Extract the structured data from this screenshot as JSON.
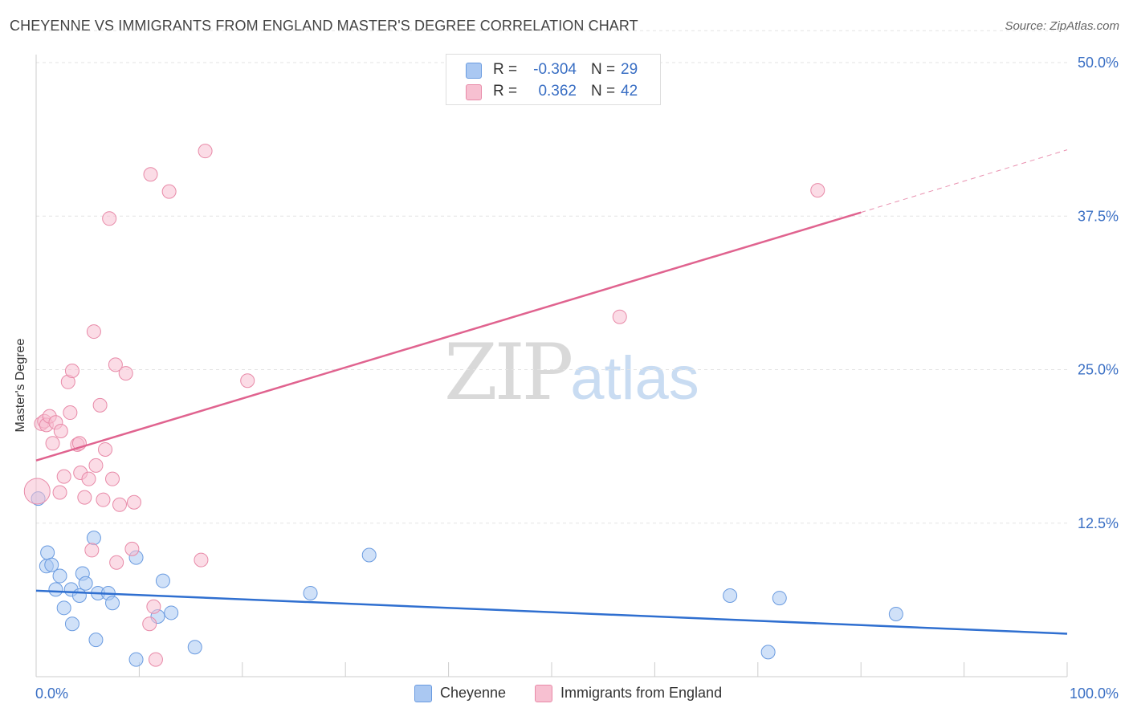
{
  "title": "CHEYENNE VS IMMIGRANTS FROM ENGLAND MASTER'S DEGREE CORRELATION CHART",
  "source": "Source: ZipAtlas.com",
  "watermark": {
    "zip": "ZIP",
    "atlas": "atlas"
  },
  "legend": {
    "rows": [
      {
        "r_label": "R =",
        "r_value": "-0.304",
        "n_label": "N =",
        "n_value": "29",
        "color": "#aac8f2",
        "border": "#6a9be0"
      },
      {
        "r_label": "R =",
        "r_value": "0.362",
        "n_label": "N =",
        "n_value": "42",
        "color": "#f7c0d1",
        "border": "#e88aa8"
      }
    ]
  },
  "bottom_legend": [
    {
      "label": "Cheyenne",
      "color": "#aac8f2",
      "border": "#6a9be0"
    },
    {
      "label": "Immigrants from England",
      "color": "#f7c0d1",
      "border": "#e88aa8"
    }
  ],
  "chart_data": {
    "type": "scatter",
    "title": "CHEYENNE VS IMMIGRANTS FROM ENGLAND MASTER'S DEGREE CORRELATION CHART",
    "xlabel": "",
    "ylabel": "Master's Degree",
    "xlim": [
      0,
      100
    ],
    "ylim": [
      0,
      50
    ],
    "x_tick_labels": [
      {
        "value": 0,
        "label": "0.0%"
      },
      {
        "value": 100,
        "label": "100.0%"
      }
    ],
    "y_tick_labels": [
      {
        "value": 12.5,
        "label": "12.5%"
      },
      {
        "value": 25,
        "label": "25.0%"
      },
      {
        "value": 37.5,
        "label": "37.5%"
      },
      {
        "value": 50,
        "label": "50.0%"
      }
    ],
    "grid": true,
    "series": [
      {
        "name": "Cheyenne",
        "color": "#aac8f2",
        "stroke": "#6a9be0",
        "trend_color": "#2f6fd0",
        "trend": {
          "x": [
            0,
            100
          ],
          "y": [
            7.0,
            3.5
          ]
        },
        "points": [
          {
            "x": 0.2,
            "y": 14.5
          },
          {
            "x": 1.0,
            "y": 9.0
          },
          {
            "x": 1.1,
            "y": 10.1
          },
          {
            "x": 1.5,
            "y": 9.1
          },
          {
            "x": 1.9,
            "y": 7.1
          },
          {
            "x": 2.3,
            "y": 8.2
          },
          {
            "x": 2.7,
            "y": 5.6
          },
          {
            "x": 3.4,
            "y": 7.1
          },
          {
            "x": 3.5,
            "y": 4.3
          },
          {
            "x": 4.2,
            "y": 6.6
          },
          {
            "x": 4.5,
            "y": 8.4
          },
          {
            "x": 4.8,
            "y": 7.6
          },
          {
            "x": 5.6,
            "y": 11.3
          },
          {
            "x": 5.8,
            "y": 3.0
          },
          {
            "x": 6.0,
            "y": 6.8
          },
          {
            "x": 7.0,
            "y": 6.8
          },
          {
            "x": 7.4,
            "y": 6.0
          },
          {
            "x": 9.7,
            "y": 1.4
          },
          {
            "x": 9.7,
            "y": 9.7
          },
          {
            "x": 11.8,
            "y": 4.9
          },
          {
            "x": 12.3,
            "y": 7.8
          },
          {
            "x": 13.1,
            "y": 5.2
          },
          {
            "x": 15.4,
            "y": 2.4
          },
          {
            "x": 26.6,
            "y": 6.8
          },
          {
            "x": 32.3,
            "y": 9.9
          },
          {
            "x": 67.3,
            "y": 6.6
          },
          {
            "x": 71.0,
            "y": 2.0
          },
          {
            "x": 72.1,
            "y": 6.4
          },
          {
            "x": 83.4,
            "y": 5.1
          }
        ]
      },
      {
        "name": "Immigrants from England",
        "color": "#f7c0d1",
        "stroke": "#e88aa8",
        "trend_color": "#e0638f",
        "trend": {
          "x": [
            0,
            80
          ],
          "y": [
            17.6,
            37.8
          ]
        },
        "trend_dashed": {
          "x": [
            80,
            100
          ],
          "y": [
            37.8,
            42.9
          ]
        },
        "points": [
          {
            "x": 0.1,
            "y": 15.1,
            "big": true
          },
          {
            "x": 0.5,
            "y": 20.6
          },
          {
            "x": 0.8,
            "y": 20.8
          },
          {
            "x": 1.0,
            "y": 20.5
          },
          {
            "x": 1.3,
            "y": 21.2
          },
          {
            "x": 1.6,
            "y": 19.0
          },
          {
            "x": 1.9,
            "y": 20.7
          },
          {
            "x": 2.3,
            "y": 15.0
          },
          {
            "x": 2.4,
            "y": 20.0
          },
          {
            "x": 2.7,
            "y": 16.3
          },
          {
            "x": 3.1,
            "y": 24.0
          },
          {
            "x": 3.3,
            "y": 21.5
          },
          {
            "x": 3.5,
            "y": 24.9
          },
          {
            "x": 4.0,
            "y": 18.9
          },
          {
            "x": 4.2,
            "y": 19.0
          },
          {
            "x": 4.3,
            "y": 16.6
          },
          {
            "x": 4.7,
            "y": 14.6
          },
          {
            "x": 5.1,
            "y": 16.1
          },
          {
            "x": 5.4,
            "y": 10.3
          },
          {
            "x": 5.6,
            "y": 28.1
          },
          {
            "x": 5.8,
            "y": 17.2
          },
          {
            "x": 6.2,
            "y": 22.1
          },
          {
            "x": 6.5,
            "y": 14.4
          },
          {
            "x": 6.7,
            "y": 18.5
          },
          {
            "x": 7.1,
            "y": 37.3
          },
          {
            "x": 7.4,
            "y": 16.1
          },
          {
            "x": 7.7,
            "y": 25.4
          },
          {
            "x": 7.8,
            "y": 9.3
          },
          {
            "x": 8.1,
            "y": 14.0
          },
          {
            "x": 8.7,
            "y": 24.7
          },
          {
            "x": 9.3,
            "y": 10.4
          },
          {
            "x": 9.5,
            "y": 14.2
          },
          {
            "x": 11.0,
            "y": 4.3
          },
          {
            "x": 11.1,
            "y": 40.9
          },
          {
            "x": 11.6,
            "y": 1.4
          },
          {
            "x": 12.9,
            "y": 39.5
          },
          {
            "x": 16.0,
            "y": 9.5
          },
          {
            "x": 16.4,
            "y": 42.8
          },
          {
            "x": 20.5,
            "y": 24.1
          },
          {
            "x": 56.6,
            "y": 29.3
          },
          {
            "x": 75.8,
            "y": 39.6
          },
          {
            "x": 11.4,
            "y": 5.7
          }
        ]
      }
    ]
  }
}
